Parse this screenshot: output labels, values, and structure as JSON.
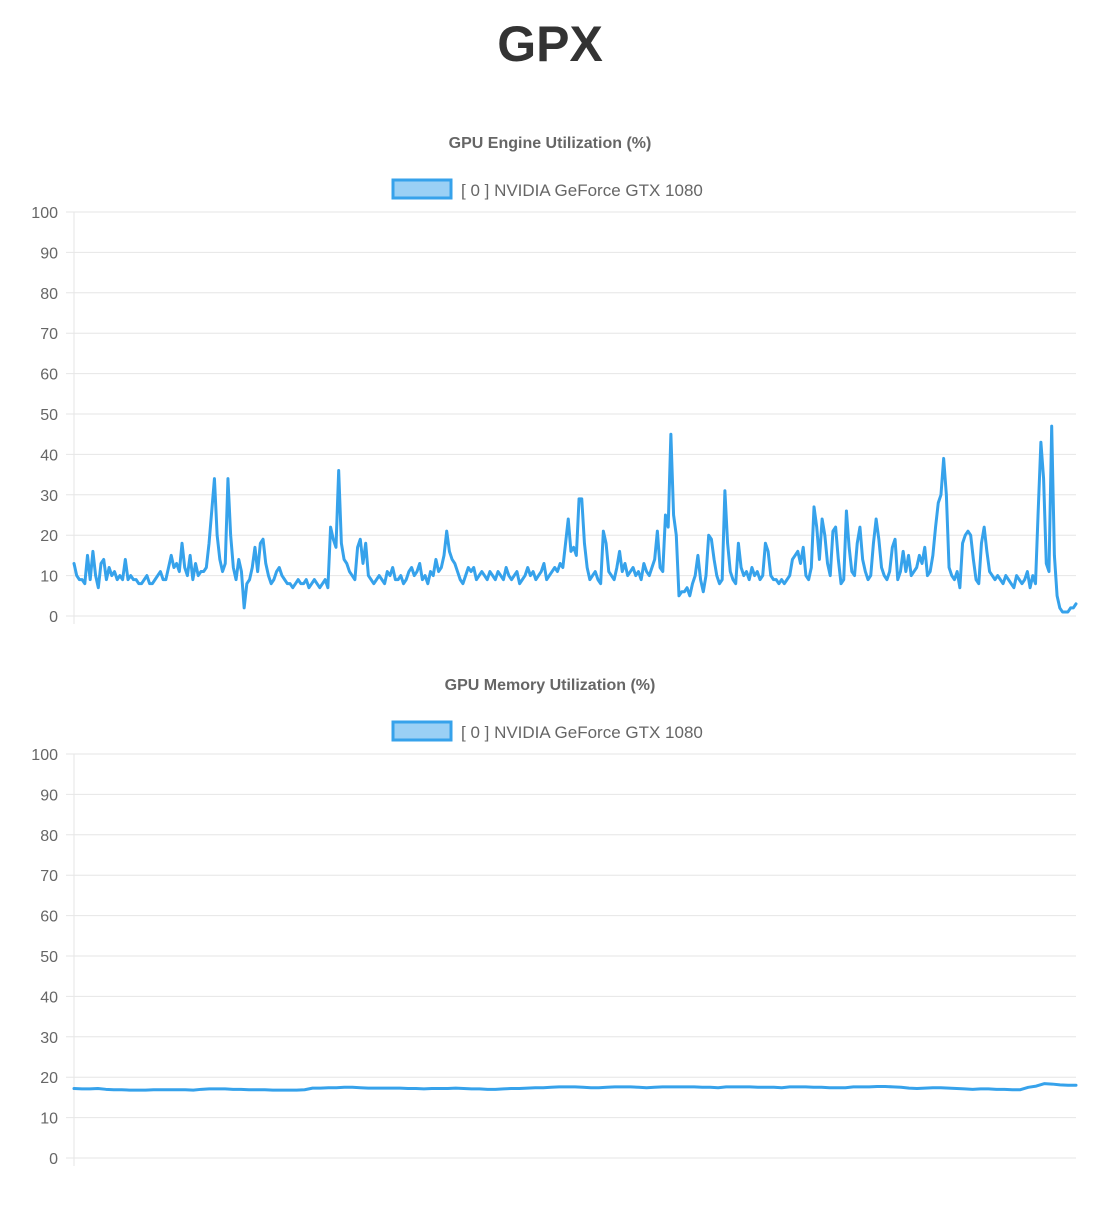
{
  "page": {
    "title": "GPX"
  },
  "colors": {
    "series_line": "#36a2eb",
    "series_fill": "#9ad0f5",
    "grid": "#e6e6e6",
    "text": "#666666",
    "title": "#333333"
  },
  "chart_data": [
    {
      "type": "line",
      "title": "GPU Engine Utilization (%)",
      "xlabel": "",
      "ylabel": "",
      "ylim": [
        0,
        100
      ],
      "yticks": [
        "100",
        "90",
        "80",
        "70",
        "60",
        "50",
        "40",
        "30",
        "20",
        "10",
        "0"
      ],
      "grid": true,
      "legend": "top-center",
      "series": [
        {
          "name": "[ 0 ] NVIDIA GeForce GTX 1080",
          "values": [
            13,
            10,
            9,
            9,
            8,
            15,
            9,
            16,
            10,
            7,
            13,
            14,
            9,
            12,
            10,
            11,
            9,
            10,
            9,
            14,
            9,
            10,
            9,
            9,
            8,
            8,
            9,
            10,
            8,
            8,
            9,
            10,
            11,
            9,
            9,
            12,
            15,
            12,
            13,
            11,
            18,
            12,
            10,
            15,
            9,
            13,
            10,
            11,
            11,
            12,
            18,
            26,
            34,
            20,
            14,
            11,
            13,
            34,
            20,
            12,
            9,
            14,
            11,
            2,
            8,
            9,
            12,
            17,
            11,
            18,
            19,
            13,
            10,
            8,
            9,
            11,
            12,
            10,
            9,
            8,
            8,
            7,
            8,
            9,
            8,
            8,
            9,
            7,
            8,
            9,
            8,
            7,
            8,
            9,
            7,
            22,
            19,
            17,
            36,
            18,
            14,
            13,
            11,
            10,
            9,
            17,
            19,
            13,
            18,
            10,
            9,
            8,
            9,
            10,
            9,
            8,
            11,
            10,
            12,
            9,
            9,
            10,
            8,
            9,
            11,
            12,
            10,
            11,
            13,
            9,
            10,
            8,
            11,
            10,
            14,
            11,
            12,
            15,
            21,
            16,
            14,
            13,
            11,
            9,
            8,
            10,
            12,
            11,
            12,
            9,
            10,
            11,
            10,
            9,
            11,
            10,
            9,
            11,
            10,
            9,
            12,
            10,
            9,
            10,
            11,
            8,
            9,
            10,
            12,
            10,
            11,
            9,
            10,
            11,
            13,
            9,
            10,
            11,
            12,
            11,
            13,
            12,
            18,
            24,
            16,
            17,
            15,
            29,
            29,
            18,
            12,
            9,
            10,
            11,
            9,
            8,
            21,
            18,
            11,
            10,
            9,
            12,
            16,
            11,
            13,
            10,
            11,
            12,
            10,
            11,
            9,
            13,
            11,
            10,
            12,
            14,
            21,
            12,
            11,
            25,
            22,
            45,
            25,
            20,
            5,
            6,
            6,
            7,
            5,
            8,
            10,
            15,
            9,
            6,
            10,
            20,
            19,
            14,
            10,
            8,
            9,
            31,
            18,
            11,
            9,
            8,
            18,
            12,
            10,
            11,
            9,
            12,
            10,
            11,
            9,
            10,
            18,
            16,
            10,
            9,
            9,
            8,
            9,
            8,
            9,
            10,
            14,
            15,
            16,
            13,
            17,
            10,
            9,
            12,
            27,
            22,
            14,
            24,
            20,
            13,
            10,
            21,
            22,
            14,
            8,
            9,
            26,
            17,
            11,
            10,
            18,
            22,
            14,
            11,
            9,
            10,
            18,
            24,
            19,
            12,
            10,
            9,
            11,
            17,
            19,
            9,
            11,
            16,
            11,
            15,
            10,
            11,
            12,
            15,
            13,
            17,
            10,
            11,
            15,
            22,
            28,
            30,
            39,
            30,
            12,
            10,
            9,
            11,
            7,
            18,
            20,
            21,
            20,
            14,
            9,
            8,
            18,
            22,
            16,
            11,
            10,
            9,
            10,
            9,
            8,
            10,
            9,
            8,
            7,
            10,
            9,
            8,
            9,
            11,
            7,
            10,
            8,
            26,
            43,
            34,
            13,
            11,
            47,
            15,
            5,
            2,
            1,
            1,
            1,
            2,
            2,
            3
          ]
        }
      ]
    },
    {
      "type": "line",
      "title": "GPU Memory Utilization (%)",
      "xlabel": "",
      "ylabel": "",
      "ylim": [
        0,
        100
      ],
      "yticks": [
        "100",
        "90",
        "80",
        "70",
        "60",
        "50",
        "40",
        "30",
        "20",
        "10",
        "0"
      ],
      "grid": true,
      "legend": "top-center",
      "series": [
        {
          "name": "[ 0 ] NVIDIA GeForce GTX 1080",
          "values": [
            17.2,
            17.1,
            17.1,
            17.2,
            17.0,
            16.9,
            16.9,
            16.8,
            16.8,
            16.8,
            16.9,
            16.9,
            16.9,
            16.9,
            16.9,
            16.8,
            17.0,
            17.1,
            17.1,
            17.1,
            17.0,
            17.0,
            16.9,
            16.9,
            16.9,
            16.8,
            16.8,
            16.8,
            16.8,
            16.9,
            17.3,
            17.3,
            17.4,
            17.4,
            17.5,
            17.5,
            17.4,
            17.3,
            17.3,
            17.3,
            17.3,
            17.3,
            17.2,
            17.2,
            17.1,
            17.2,
            17.2,
            17.2,
            17.3,
            17.2,
            17.1,
            17.1,
            17.0,
            17.0,
            17.1,
            17.2,
            17.2,
            17.3,
            17.4,
            17.4,
            17.5,
            17.6,
            17.6,
            17.6,
            17.5,
            17.4,
            17.4,
            17.5,
            17.6,
            17.6,
            17.6,
            17.5,
            17.4,
            17.5,
            17.6,
            17.6,
            17.6,
            17.6,
            17.6,
            17.5,
            17.5,
            17.4,
            17.6,
            17.6,
            17.6,
            17.6,
            17.5,
            17.5,
            17.5,
            17.4,
            17.6,
            17.6,
            17.6,
            17.5,
            17.5,
            17.4,
            17.4,
            17.4,
            17.6,
            17.6,
            17.6,
            17.7,
            17.7,
            17.6,
            17.5,
            17.3,
            17.2,
            17.3,
            17.4,
            17.4,
            17.3,
            17.2,
            17.1,
            17.0,
            17.1,
            17.1,
            17.0,
            17.0,
            16.9,
            16.9,
            17.5,
            17.8,
            18.4,
            18.3,
            18.1,
            18.0,
            18.0
          ]
        }
      ]
    }
  ]
}
